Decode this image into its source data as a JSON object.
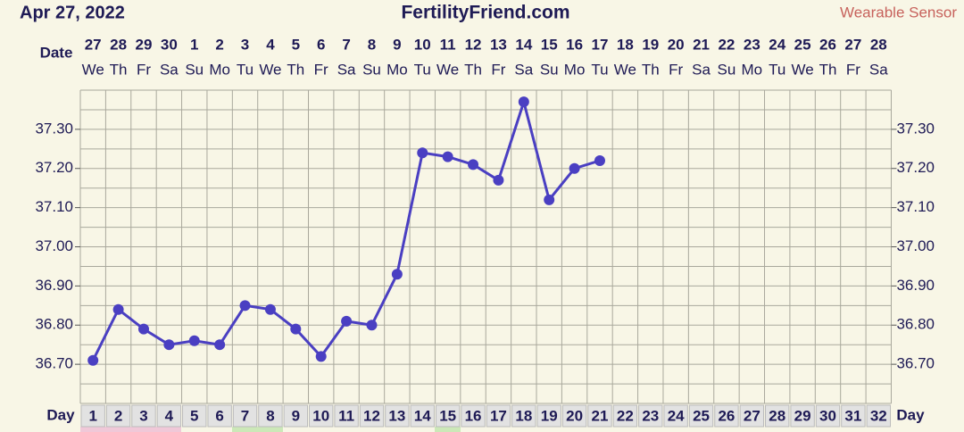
{
  "header": {
    "date": "Apr 27, 2022",
    "site": "FertilityFriend.com",
    "mode": "Wearable Sensor"
  },
  "chart_data": {
    "type": "line",
    "date_label": "Date",
    "dates": [
      "27",
      "28",
      "29",
      "30",
      "1",
      "2",
      "3",
      "4",
      "5",
      "6",
      "7",
      "8",
      "9",
      "10",
      "11",
      "12",
      "13",
      "14",
      "15",
      "16",
      "17",
      "18",
      "19",
      "20",
      "21",
      "22",
      "23",
      "24",
      "25",
      "26",
      "27",
      "28"
    ],
    "weekdays": [
      "We",
      "Th",
      "Fr",
      "Sa",
      "Su",
      "Mo",
      "Tu",
      "We",
      "Th",
      "Fr",
      "Sa",
      "Su",
      "Mo",
      "Tu",
      "We",
      "Th",
      "Fr",
      "Sa",
      "Su",
      "Mo",
      "Tu",
      "We",
      "Th",
      "Fr",
      "Sa",
      "Su",
      "Mo",
      "Tu",
      "We",
      "Th",
      "Fr",
      "Sa"
    ],
    "x_label": "Day",
    "categories": [
      "1",
      "2",
      "3",
      "4",
      "5",
      "6",
      "7",
      "8",
      "9",
      "10",
      "11",
      "12",
      "13",
      "14",
      "15",
      "16",
      "17",
      "18",
      "19",
      "20",
      "21",
      "22",
      "23",
      "24",
      "25",
      "26",
      "27",
      "28",
      "29",
      "30",
      "31",
      "32"
    ],
    "series": [
      {
        "color": "#4a3fc2",
        "values": [
          36.71,
          36.84,
          36.79,
          36.75,
          36.76,
          36.75,
          36.85,
          36.84,
          36.79,
          36.72,
          36.81,
          36.8,
          36.93,
          37.24,
          37.23,
          37.21,
          37.17,
          37.37,
          37.12,
          37.2,
          37.22,
          null,
          null,
          null,
          null,
          null,
          null,
          null,
          null,
          null,
          null,
          null
        ]
      }
    ],
    "ylim": [
      36.6,
      37.4
    ],
    "yticks": [
      {
        "value": 36.7,
        "label": "36.70"
      },
      {
        "value": 36.8,
        "label": "36.80"
      },
      {
        "value": 36.9,
        "label": "36.90"
      },
      {
        "value": 37.0,
        "label": "37.00"
      },
      {
        "value": 37.1,
        "label": "37.10"
      },
      {
        "value": 37.2,
        "label": "37.20"
      },
      {
        "value": 37.3,
        "label": "37.30"
      }
    ],
    "grid": true
  }
}
